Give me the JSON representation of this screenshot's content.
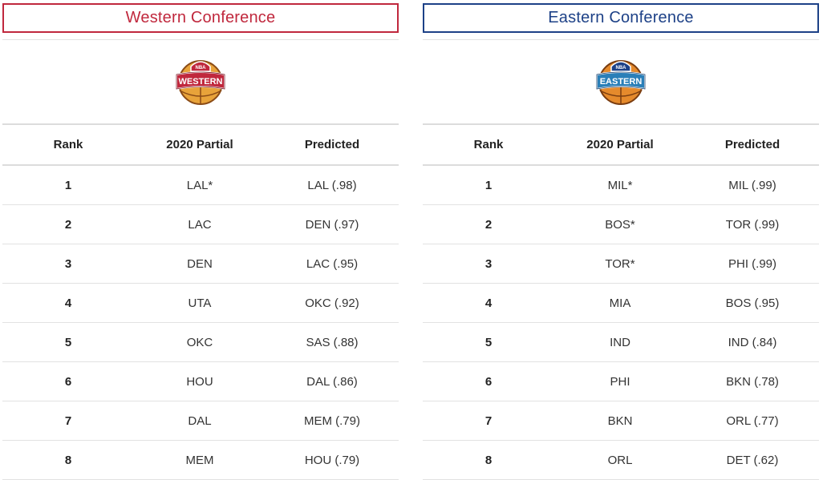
{
  "west": {
    "title": "Western Conference",
    "logo": {
      "icon": "western-conference-logo",
      "top_text": "NBA",
      "band_text": "WESTERN",
      "color": "#c0283d"
    },
    "columns": [
      "Rank",
      "2020 Partial",
      "Predicted"
    ],
    "rows": [
      {
        "rank": "1",
        "partial": "LAL*",
        "predicted": "LAL (.98)"
      },
      {
        "rank": "2",
        "partial": "LAC",
        "predicted": "DEN (.97)"
      },
      {
        "rank": "3",
        "partial": "DEN",
        "predicted": "LAC (.95)"
      },
      {
        "rank": "4",
        "partial": "UTA",
        "predicted": "OKC (.92)"
      },
      {
        "rank": "5",
        "partial": "OKC",
        "predicted": "SAS (.88)"
      },
      {
        "rank": "6",
        "partial": "HOU",
        "predicted": "DAL (.86)"
      },
      {
        "rank": "7",
        "partial": "DAL",
        "predicted": "MEM (.79)"
      },
      {
        "rank": "8",
        "partial": "MEM",
        "predicted": "HOU (.79)"
      }
    ]
  },
  "east": {
    "title": "Eastern Conference",
    "logo": {
      "icon": "eastern-conference-logo",
      "top_text": "NBA",
      "band_text": "EASTERN",
      "color": "#1d4187"
    },
    "columns": [
      "Rank",
      "2020 Partial",
      "Predicted"
    ],
    "rows": [
      {
        "rank": "1",
        "partial": "MIL*",
        "predicted": "MIL (.99)"
      },
      {
        "rank": "2",
        "partial": "BOS*",
        "predicted": "TOR (.99)"
      },
      {
        "rank": "3",
        "partial": "TOR*",
        "predicted": "PHI (.99)"
      },
      {
        "rank": "4",
        "partial": "MIA",
        "predicted": "BOS (.95)"
      },
      {
        "rank": "5",
        "partial": "IND",
        "predicted": "IND (.84)"
      },
      {
        "rank": "6",
        "partial": "PHI",
        "predicted": "BKN (.78)"
      },
      {
        "rank": "7",
        "partial": "BKN",
        "predicted": "ORL (.77)"
      },
      {
        "rank": "8",
        "partial": "ORL",
        "predicted": "DET (.62)"
      }
    ]
  }
}
